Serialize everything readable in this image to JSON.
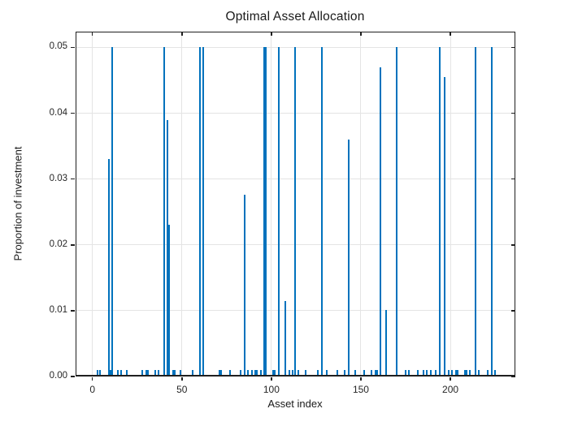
{
  "figure": {
    "title": "Optimal Asset Allocation",
    "xlabel": "Asset index",
    "ylabel": "Proportion of investment"
  },
  "chart_data": {
    "type": "bar",
    "title": "Optimal Asset Allocation",
    "xlabel": "Asset index",
    "ylabel": "Proportion of investment",
    "xlim": [
      -9.4,
      236.3
    ],
    "ylim": [
      0,
      0.0524
    ],
    "xticks": [
      0,
      50,
      100,
      150,
      200
    ],
    "xtick_labels": [
      "0",
      "50",
      "100",
      "150",
      "200"
    ],
    "yticks": [
      0,
      0.01,
      0.02,
      0.03,
      0.04,
      0.05
    ],
    "ytick_labels": [
      "0.00",
      "0.01",
      "0.02",
      "0.03",
      "0.04",
      "0.05"
    ],
    "grid": true,
    "legend": null,
    "bar_color": "#0072BD",
    "bars": [
      {
        "x": 3,
        "y": 0.001
      },
      {
        "x": 4,
        "y": 0.001
      },
      {
        "x": 9,
        "y": 0.033
      },
      {
        "x": 10,
        "y": 0.001
      },
      {
        "x": 11,
        "y": 0.05
      },
      {
        "x": 14,
        "y": 0.001
      },
      {
        "x": 16,
        "y": 0.001
      },
      {
        "x": 19,
        "y": 0.001
      },
      {
        "x": 28,
        "y": 0.001
      },
      {
        "x": 30,
        "y": 0.001
      },
      {
        "x": 31,
        "y": 0.001
      },
      {
        "x": 35,
        "y": 0.001
      },
      {
        "x": 37,
        "y": 0.001
      },
      {
        "x": 40,
        "y": 0.05
      },
      {
        "x": 42,
        "y": 0.039
      },
      {
        "x": 43,
        "y": 0.023
      },
      {
        "x": 45,
        "y": 0.001
      },
      {
        "x": 46,
        "y": 0.001
      },
      {
        "x": 49,
        "y": 0.001
      },
      {
        "x": 56,
        "y": 0.001
      },
      {
        "x": 60,
        "y": 0.05
      },
      {
        "x": 62,
        "y": 0.05
      },
      {
        "x": 71,
        "y": 0.001
      },
      {
        "x": 72,
        "y": 0.001
      },
      {
        "x": 77,
        "y": 0.001
      },
      {
        "x": 83,
        "y": 0.001
      },
      {
        "x": 85,
        "y": 0.0276
      },
      {
        "x": 87,
        "y": 0.001
      },
      {
        "x": 89,
        "y": 0.001
      },
      {
        "x": 91,
        "y": 0.001
      },
      {
        "x": 92,
        "y": 0.001
      },
      {
        "x": 94,
        "y": 0.001
      },
      {
        "x": 96,
        "y": 0.05
      },
      {
        "x": 97,
        "y": 0.05
      },
      {
        "x": 101,
        "y": 0.001
      },
      {
        "x": 102,
        "y": 0.001
      },
      {
        "x": 104,
        "y": 0.05
      },
      {
        "x": 108,
        "y": 0.0115
      },
      {
        "x": 110,
        "y": 0.001
      },
      {
        "x": 112,
        "y": 0.001
      },
      {
        "x": 113,
        "y": 0.05
      },
      {
        "x": 115,
        "y": 0.001
      },
      {
        "x": 119,
        "y": 0.001
      },
      {
        "x": 126,
        "y": 0.001
      },
      {
        "x": 128,
        "y": 0.05
      },
      {
        "x": 131,
        "y": 0.001
      },
      {
        "x": 137,
        "y": 0.001
      },
      {
        "x": 141,
        "y": 0.001
      },
      {
        "x": 143,
        "y": 0.036
      },
      {
        "x": 147,
        "y": 0.001
      },
      {
        "x": 152,
        "y": 0.001
      },
      {
        "x": 156,
        "y": 0.001
      },
      {
        "x": 158,
        "y": 0.001
      },
      {
        "x": 159,
        "y": 0.001
      },
      {
        "x": 161,
        "y": 0.047
      },
      {
        "x": 164,
        "y": 0.0101
      },
      {
        "x": 170,
        "y": 0.05
      },
      {
        "x": 175,
        "y": 0.001
      },
      {
        "x": 177,
        "y": 0.001
      },
      {
        "x": 182,
        "y": 0.001
      },
      {
        "x": 185,
        "y": 0.001
      },
      {
        "x": 187,
        "y": 0.001
      },
      {
        "x": 189,
        "y": 0.001
      },
      {
        "x": 192,
        "y": 0.001
      },
      {
        "x": 194,
        "y": 0.05
      },
      {
        "x": 197,
        "y": 0.0455
      },
      {
        "x": 199,
        "y": 0.001
      },
      {
        "x": 201,
        "y": 0.001
      },
      {
        "x": 203,
        "y": 0.001
      },
      {
        "x": 204,
        "y": 0.001
      },
      {
        "x": 208,
        "y": 0.001
      },
      {
        "x": 209,
        "y": 0.001
      },
      {
        "x": 211,
        "y": 0.001
      },
      {
        "x": 214,
        "y": 0.05
      },
      {
        "x": 216,
        "y": 0.001
      },
      {
        "x": 221,
        "y": 0.001
      },
      {
        "x": 223,
        "y": 0.05
      },
      {
        "x": 225,
        "y": 0.001
      }
    ]
  }
}
